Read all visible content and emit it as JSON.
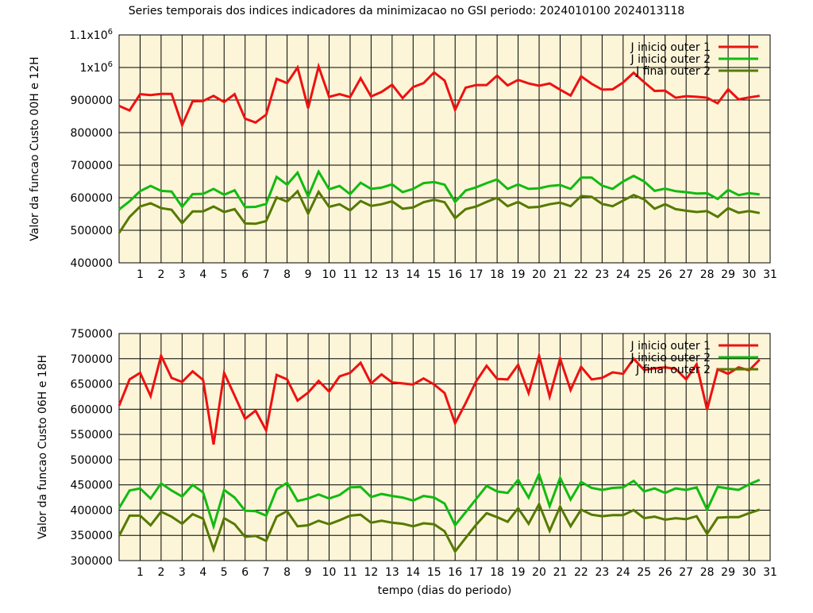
{
  "title": "Series temporais dos indices indicadores da minimizacao no GSI periodo: 2024010100 2024013118",
  "colors": {
    "background": "#fcf5d8",
    "series1": "#ee1111",
    "series2": "#11bb11",
    "series3": "#557a00",
    "grid": "#000000"
  },
  "chart_data": [
    {
      "type": "line",
      "ylabel": "Valor da funcao Custo 00H e 12H",
      "xlabel": "",
      "xlim": [
        0,
        31
      ],
      "ylim": [
        400000,
        1100000
      ],
      "xticks": [
        1,
        2,
        3,
        4,
        5,
        6,
        7,
        8,
        9,
        10,
        11,
        12,
        13,
        14,
        15,
        16,
        17,
        18,
        19,
        20,
        21,
        22,
        23,
        24,
        25,
        26,
        27,
        28,
        29,
        30,
        31
      ],
      "yticks": [
        {
          "v": 400000,
          "label": "400000"
        },
        {
          "v": 500000,
          "label": "500000"
        },
        {
          "v": 600000,
          "label": "600000"
        },
        {
          "v": 700000,
          "label": "700000"
        },
        {
          "v": 800000,
          "label": "800000"
        },
        {
          "v": 900000,
          "label": "900000"
        },
        {
          "v": 1000000,
          "label": "1x10",
          "exp": "6"
        },
        {
          "v": 1100000,
          "label": "1.1x10",
          "exp": "6"
        }
      ],
      "grid": true,
      "legend_position": "top-right",
      "x": [
        0,
        0.5,
        1,
        1.5,
        2,
        2.5,
        3,
        3.5,
        4,
        4.5,
        5,
        5.5,
        6,
        6.5,
        7,
        7.5,
        8,
        8.5,
        9,
        9.5,
        10,
        10.5,
        11,
        11.5,
        12,
        12.5,
        13,
        13.5,
        14,
        14.5,
        15,
        15.5,
        16,
        16.5,
        17,
        17.5,
        18,
        18.5,
        19,
        19.5,
        20,
        20.5,
        21,
        21.5,
        22,
        22.5,
        23,
        23.5,
        24,
        24.5,
        25,
        25.5,
        26,
        26.5,
        27,
        27.5,
        28,
        28.5,
        29,
        29.5,
        30,
        30.5
      ],
      "series": [
        {
          "name": "J inicio outer 1",
          "color": "#ee1111",
          "values": [
            882000,
            868000,
            918000,
            915000,
            919000,
            919000,
            823000,
            896000,
            897000,
            913000,
            894000,
            918000,
            843000,
            831000,
            855000,
            965000,
            952000,
            1000000,
            875000,
            1003000,
            910000,
            918000,
            909000,
            967000,
            911000,
            925000,
            947000,
            906000,
            940000,
            952000,
            985000,
            960000,
            870000,
            938000,
            946000,
            946000,
            975000,
            945000,
            962000,
            951000,
            944000,
            951000,
            932000,
            914000,
            973000,
            950000,
            932000,
            933000,
            954000,
            984000,
            955000,
            928000,
            929000,
            907000,
            912000,
            910000,
            907000,
            890000,
            933000,
            902000,
            908000,
            913000
          ]
        },
        {
          "name": "J inicio outer 2",
          "color": "#11bb11",
          "values": [
            564000,
            589000,
            620000,
            636000,
            621000,
            619000,
            572000,
            611000,
            612000,
            627000,
            609000,
            623000,
            571000,
            572000,
            581000,
            664000,
            640000,
            677000,
            604000,
            680000,
            626000,
            636000,
            611000,
            646000,
            627000,
            631000,
            641000,
            617000,
            627000,
            645000,
            648000,
            640000,
            587000,
            622000,
            632000,
            645000,
            656000,
            627000,
            641000,
            627000,
            629000,
            636000,
            639000,
            627000,
            662000,
            662000,
            637000,
            627000,
            650000,
            667000,
            650000,
            621000,
            628000,
            620000,
            617000,
            613000,
            614000,
            596000,
            624000,
            608000,
            614000,
            610000
          ]
        },
        {
          "name": "J final outer 2",
          "color": "#557a00",
          "values": [
            492000,
            541000,
            573000,
            583000,
            568000,
            563000,
            522000,
            558000,
            558000,
            573000,
            556000,
            565000,
            521000,
            520000,
            528000,
            601000,
            588000,
            620000,
            551000,
            618000,
            572000,
            580000,
            561000,
            590000,
            575000,
            580000,
            589000,
            566000,
            570000,
            586000,
            594000,
            586000,
            537000,
            565000,
            573000,
            587000,
            600000,
            574000,
            587000,
            570000,
            572000,
            580000,
            585000,
            574000,
            605000,
            603000,
            581000,
            574000,
            591000,
            608000,
            595000,
            566000,
            580000,
            565000,
            560000,
            556000,
            559000,
            541000,
            568000,
            554000,
            559000,
            553000
          ]
        }
      ]
    },
    {
      "type": "line",
      "ylabel": "Valor da funcao Custo 06H e 18H",
      "xlabel": "tempo (dias do periodo)",
      "xlim": [
        0,
        31
      ],
      "ylim": [
        300000,
        750000
      ],
      "xticks": [
        1,
        2,
        3,
        4,
        5,
        6,
        7,
        8,
        9,
        10,
        11,
        12,
        13,
        14,
        15,
        16,
        17,
        18,
        19,
        20,
        21,
        22,
        23,
        24,
        25,
        26,
        27,
        28,
        29,
        30,
        31
      ],
      "yticks": [
        {
          "v": 300000,
          "label": "300000"
        },
        {
          "v": 350000,
          "label": "350000"
        },
        {
          "v": 400000,
          "label": "400000"
        },
        {
          "v": 450000,
          "label": "450000"
        },
        {
          "v": 500000,
          "label": "500000"
        },
        {
          "v": 550000,
          "label": "550000"
        },
        {
          "v": 600000,
          "label": "600000"
        },
        {
          "v": 650000,
          "label": "650000"
        },
        {
          "v": 700000,
          "label": "700000"
        },
        {
          "v": 750000,
          "label": "750000"
        }
      ],
      "grid": true,
      "legend_position": "top-right",
      "x": [
        0,
        0.5,
        1,
        1.5,
        2,
        2.5,
        3,
        3.5,
        4,
        4.5,
        5,
        5.5,
        6,
        6.5,
        7,
        7.5,
        8,
        8.5,
        9,
        9.5,
        10,
        10.5,
        11,
        11.5,
        12,
        12.5,
        13,
        13.5,
        14,
        14.5,
        15,
        15.5,
        16,
        16.5,
        17,
        17.5,
        18,
        18.5,
        19,
        19.5,
        20,
        20.5,
        21,
        21.5,
        22,
        22.5,
        23,
        23.5,
        24,
        24.5,
        25,
        25.5,
        26,
        26.5,
        27,
        27.5,
        28,
        28.5,
        29,
        29.5,
        30,
        30.5
      ],
      "series": [
        {
          "name": "J inicio outer 1",
          "color": "#ee1111",
          "values": [
            607000,
            659000,
            672000,
            626000,
            706000,
            662000,
            654000,
            675000,
            658000,
            530000,
            672000,
            627000,
            581000,
            597000,
            558000,
            668000,
            659000,
            617000,
            633000,
            656000,
            635000,
            665000,
            672000,
            692000,
            651000,
            669000,
            653000,
            651000,
            649000,
            661000,
            649000,
            632000,
            572000,
            612000,
            655000,
            686000,
            660000,
            659000,
            688000,
            632000,
            706000,
            625000,
            700000,
            638000,
            684000,
            659000,
            662000,
            673000,
            670000,
            700000,
            678000,
            681000,
            683000,
            680000,
            659000,
            689000,
            599000,
            679000,
            670000,
            683000,
            677000,
            698000
          ]
        },
        {
          "name": "J inicio outer 2",
          "color": "#11bb11",
          "values": [
            404000,
            439000,
            443000,
            423000,
            453000,
            439000,
            427000,
            450000,
            435000,
            368000,
            440000,
            425000,
            399000,
            398000,
            389000,
            441000,
            454000,
            418000,
            423000,
            431000,
            423000,
            430000,
            445000,
            446000,
            426000,
            432000,
            428000,
            425000,
            419000,
            428000,
            425000,
            413000,
            370000,
            396000,
            422000,
            448000,
            437000,
            434000,
            460000,
            425000,
            471000,
            408000,
            464000,
            421000,
            456000,
            444000,
            440000,
            444000,
            445000,
            458000,
            437000,
            443000,
            434000,
            443000,
            440000,
            445000,
            401000,
            446000,
            443000,
            440000,
            451000,
            460000
          ]
        },
        {
          "name": "J final outer 2",
          "color": "#557a00",
          "values": [
            349000,
            389000,
            389000,
            370000,
            397000,
            387000,
            373000,
            392000,
            383000,
            322000,
            384000,
            372000,
            347000,
            349000,
            339000,
            387000,
            398000,
            368000,
            370000,
            379000,
            372000,
            380000,
            389000,
            391000,
            375000,
            379000,
            375000,
            373000,
            368000,
            374000,
            372000,
            358000,
            318000,
            345000,
            371000,
            394000,
            386000,
            377000,
            404000,
            373000,
            412000,
            359000,
            407000,
            368000,
            401000,
            391000,
            388000,
            390000,
            390000,
            400000,
            384000,
            387000,
            381000,
            384000,
            382000,
            388000,
            353000,
            385000,
            386000,
            386000,
            394000,
            401000
          ]
        }
      ]
    }
  ]
}
